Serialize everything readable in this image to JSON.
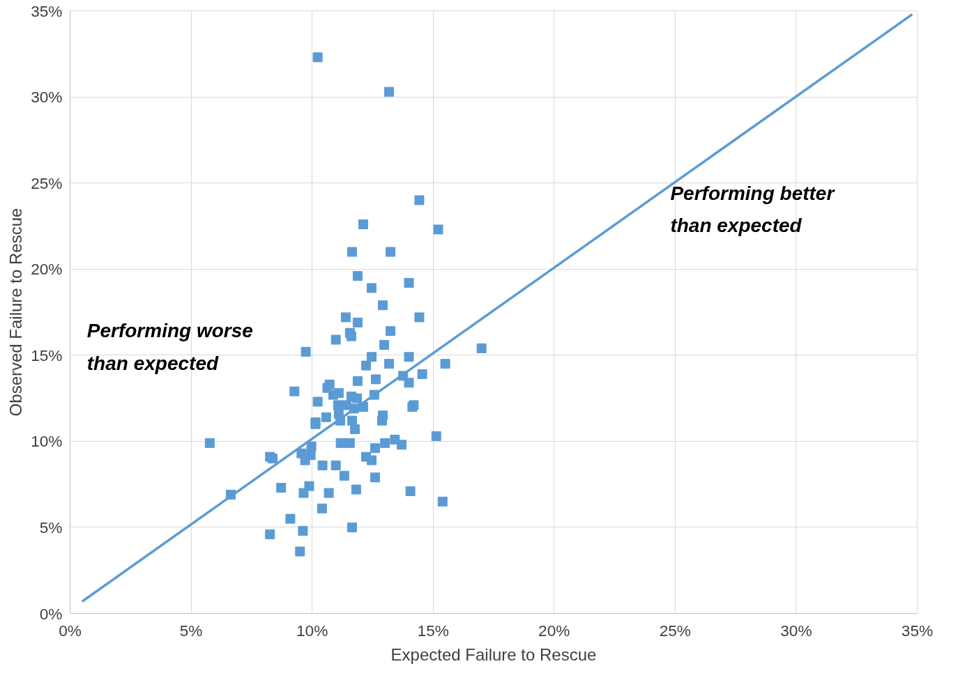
{
  "chart_data": {
    "type": "scatter",
    "xlabel": "Expected Failure to Rescue",
    "ylabel": "Observed Failure to Rescue",
    "xlim": [
      0,
      35
    ],
    "ylim": [
      0,
      35
    ],
    "xticks": [
      {
        "value": 0,
        "label": "0%"
      },
      {
        "value": 5,
        "label": "5%"
      },
      {
        "value": 10,
        "label": "10%"
      },
      {
        "value": 15,
        "label": "15%"
      },
      {
        "value": 20,
        "label": "20%"
      },
      {
        "value": 25,
        "label": "25%"
      },
      {
        "value": 30,
        "label": "30%"
      },
      {
        "value": 35,
        "label": "35%"
      }
    ],
    "yticks": [
      {
        "value": 0,
        "label": "0%"
      },
      {
        "value": 5,
        "label": "5%"
      },
      {
        "value": 10,
        "label": "10%"
      },
      {
        "value": 15,
        "label": "15%"
      },
      {
        "value": 20,
        "label": "20%"
      },
      {
        "value": 25,
        "label": "25%"
      },
      {
        "value": 30,
        "label": "30%"
      },
      {
        "value": 35,
        "label": "35%"
      }
    ],
    "grid": true,
    "marker": "square",
    "annotations": [
      "Performing worse\nthan expected",
      "Performing better\nthan expected"
    ],
    "series": [
      {
        "color": "#5b9bd5",
        "x": [
          10.23,
          13.18,
          14.43,
          15.21,
          12.11,
          11.65,
          13.24,
          11.88,
          14.0,
          12.46,
          12.92,
          14.43,
          11.39,
          11.88,
          11.56,
          13.24,
          11.62,
          10.98,
          12.98,
          9.74,
          17.0,
          12.46,
          14.0,
          13.18,
          15.5,
          12.23,
          14.55,
          13.76,
          12.63,
          11.88,
          14.0,
          10.72,
          10.63,
          9.27,
          11.1,
          10.87,
          11.62,
          12.57,
          11.85,
          10.23,
          11.07,
          11.42,
          12.11,
          11.73,
          14.14,
          14.2,
          12.92,
          11.1,
          10.58,
          12.89,
          11.16,
          11.65,
          10.14,
          10.14,
          11.77,
          15.13,
          13.42,
          5.77,
          11.18,
          11.56,
          13.01,
          13.7,
          9.97,
          12.6,
          9.56,
          9.94,
          8.26,
          8.37,
          12.23,
          12.46,
          9.71,
          10.43,
          10.98,
          11.33,
          12.6,
          8.72,
          9.88,
          11.82,
          9.65,
          10.69,
          14.06,
          6.64,
          15.39,
          10.41,
          9.1,
          11.65,
          8.26,
          9.62,
          9.5
        ],
        "values": [
          32.3,
          30.3,
          24.0,
          22.3,
          22.6,
          21.0,
          21.0,
          19.6,
          19.2,
          18.9,
          17.9,
          17.2,
          17.2,
          16.9,
          16.3,
          16.4,
          16.1,
          15.9,
          15.6,
          15.2,
          15.4,
          14.9,
          14.9,
          14.5,
          14.5,
          14.4,
          13.9,
          13.8,
          13.6,
          13.5,
          13.4,
          13.3,
          13.1,
          12.9,
          12.8,
          12.7,
          12.6,
          12.7,
          12.5,
          12.3,
          12.1,
          12.1,
          12.0,
          11.9,
          12.0,
          12.1,
          11.5,
          11.6,
          11.4,
          11.2,
          11.2,
          11.2,
          11.1,
          11.0,
          10.7,
          10.3,
          10.1,
          9.9,
          9.9,
          9.9,
          9.9,
          9.8,
          9.7,
          9.6,
          9.3,
          9.2,
          9.1,
          9.0,
          9.1,
          8.9,
          8.9,
          8.6,
          8.6,
          8.0,
          7.9,
          7.3,
          7.4,
          7.2,
          7.0,
          7.0,
          7.1,
          6.9,
          6.5,
          6.1,
          5.5,
          5.0,
          4.6,
          4.8,
          3.6
        ]
      },
      {
        "type": "line",
        "color": "#5b9bd5",
        "marker": "none",
        "line_style": "solid",
        "x": [
          0.5,
          34.8
        ],
        "values": [
          0.7,
          34.8
        ]
      }
    ]
  }
}
